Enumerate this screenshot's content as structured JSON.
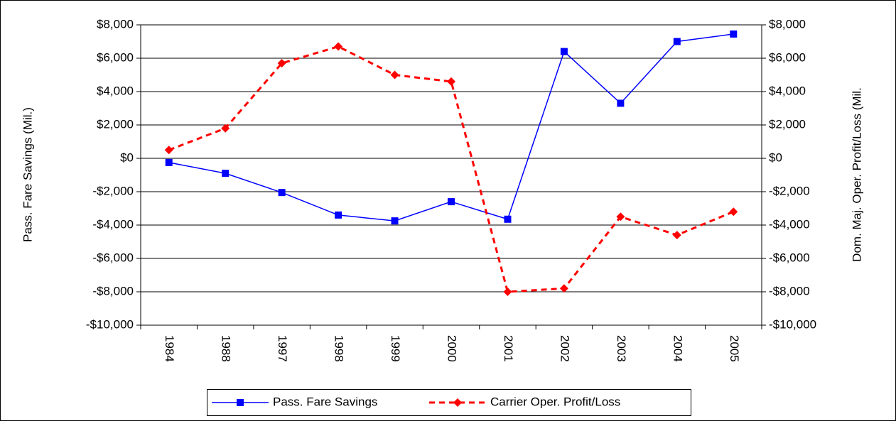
{
  "chart_data": {
    "type": "line",
    "categories": [
      "1984",
      "1988",
      "1997",
      "1998",
      "1999",
      "2000",
      "2001",
      "2002",
      "2003",
      "2004",
      "2005"
    ],
    "series": [
      {
        "name": "Pass. Fare Savings",
        "color": "#0000ff",
        "dashed": false,
        "marker": "square",
        "axis": "y",
        "values": [
          -250,
          -900,
          -2050,
          -3400,
          -3750,
          -2600,
          -3650,
          6400,
          3300,
          7000,
          7450
        ]
      },
      {
        "name": "Carrier Oper. Profit/Loss",
        "color": "#ff0000",
        "dashed": true,
        "marker": "diamond",
        "axis": "y2",
        "values": [
          500,
          1800,
          5700,
          6700,
          5000,
          4600,
          -8000,
          -7800,
          -3500,
          -4600,
          -3200
        ]
      }
    ],
    "ylabel": "Pass. Fare Savings (Mil.)",
    "y2label": "Dom. Maj. Oper. Profit/Loss (Mil.",
    "ylim": [
      -10000,
      8000
    ],
    "yticks": [
      {
        "value": -10000,
        "label": "-$10,000"
      },
      {
        "value": -8000,
        "label": "-$8,000"
      },
      {
        "value": -6000,
        "label": "-$6,000"
      },
      {
        "value": -4000,
        "label": "-$4,000"
      },
      {
        "value": -2000,
        "label": "-$2,000"
      },
      {
        "value": 0,
        "label": "$0"
      },
      {
        "value": 2000,
        "label": "$2,000"
      },
      {
        "value": 4000,
        "label": "$4,000"
      },
      {
        "value": 6000,
        "label": "$6,000"
      },
      {
        "value": 8000,
        "label": "$8,000"
      }
    ],
    "y2lim": [
      -10000,
      8000
    ],
    "y2ticks": [
      {
        "value": -10000,
        "label": "-$10,000"
      },
      {
        "value": -8000,
        "label": "-$8,000"
      },
      {
        "value": -6000,
        "label": "-$6,000"
      },
      {
        "value": -4000,
        "label": "-$4,000"
      },
      {
        "value": -2000,
        "label": "-$2,000"
      },
      {
        "value": 0,
        "label": "$0"
      },
      {
        "value": 2000,
        "label": "$2,000"
      },
      {
        "value": 4000,
        "label": "$4,000"
      },
      {
        "value": 6000,
        "label": "$6,000"
      },
      {
        "value": 8000,
        "label": "$8,000"
      }
    ],
    "grid": true,
    "legend": "bottom"
  }
}
